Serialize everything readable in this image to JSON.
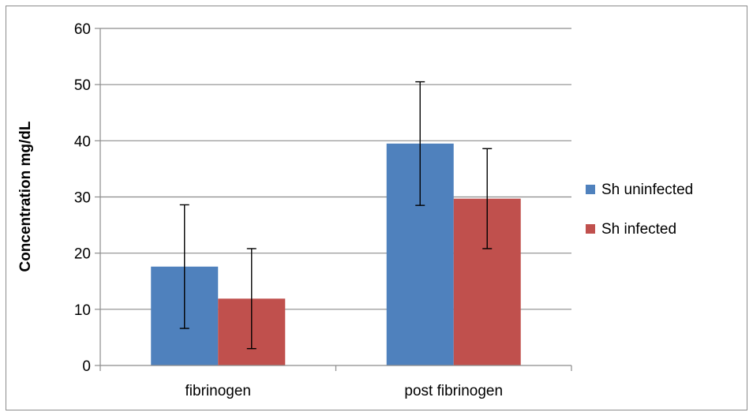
{
  "chart_data": {
    "type": "bar",
    "categories": [
      "fibrinogen",
      "post fibrinogen"
    ],
    "series": [
      {
        "name": "Sh uninfected",
        "color": "#4f81bd",
        "values": [
          17.6,
          39.5
        ],
        "error": [
          11.0,
          11.0
        ]
      },
      {
        "name": "Sh infected",
        "color": "#c0504d",
        "values": [
          11.9,
          29.7
        ],
        "error": [
          8.9,
          8.9
        ]
      }
    ],
    "ylabel": "Concentration mg/dL",
    "xlabel": "",
    "ylim": [
      0,
      60
    ],
    "yticks": [
      0,
      10,
      20,
      30,
      40,
      50,
      60
    ],
    "grid": true,
    "legend": "right"
  }
}
